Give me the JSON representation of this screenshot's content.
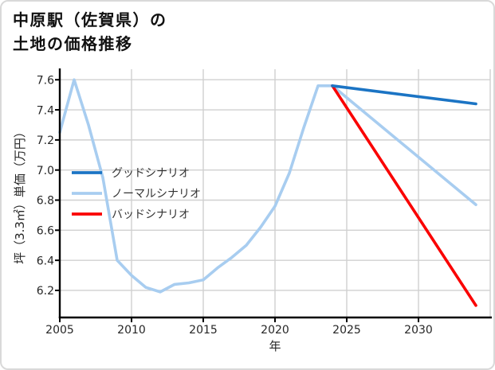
{
  "title": {
    "line1": "中原駅（佐賀県）の",
    "line2": "土地の価格推移"
  },
  "chart_data": {
    "type": "line",
    "title": "中原駅（佐賀県）の土地の価格推移",
    "xlabel": "年",
    "ylabel": "坪（3.3㎡）単価（万円）",
    "xlim": [
      2005,
      2035
    ],
    "ylim": [
      6.02,
      7.67
    ],
    "grid": true,
    "legend_position": "upper-left-inside",
    "xticks": [
      2005,
      2010,
      2015,
      2020,
      2025,
      2030
    ],
    "xtick_labels": [
      "2005",
      "2010",
      "2015",
      "2020",
      "2025",
      "2030"
    ],
    "x_gridlines": [
      2010,
      2015,
      2020,
      2025,
      2030,
      2035
    ],
    "yticks": [
      6.2,
      6.4,
      6.6,
      6.8,
      7.0,
      7.2,
      7.4,
      7.6
    ],
    "ytick_labels": [
      "6.2",
      "6.4",
      "6.6",
      "6.8",
      "7.0",
      "7.2",
      "7.4",
      "7.6"
    ],
    "colors": {
      "good": "#1b74c4",
      "normal": "#a8cdf0",
      "bad": "#fa0000",
      "grid": "#d0d0d0",
      "axis": "#000000",
      "tick_text": "#262626"
    },
    "legend_items": [
      {
        "label": "グッドシナリオ",
        "color": "#1b74c4"
      },
      {
        "label": "ノーマルシナリオ",
        "color": "#a8cdf0"
      },
      {
        "label": "バッドシナリオ",
        "color": "#fa0000"
      }
    ],
    "series": [
      {
        "name": "ノーマルシナリオ",
        "role": "normal",
        "color": "#a8cdf0",
        "x": [
          2005,
          2006,
          2007,
          2008,
          2009,
          2010,
          2011,
          2012,
          2013,
          2014,
          2015,
          2016,
          2017,
          2018,
          2019,
          2020,
          2021,
          2022,
          2023,
          2024,
          2034
        ],
        "values": [
          7.25,
          7.6,
          7.3,
          6.95,
          6.4,
          6.3,
          6.22,
          6.19,
          6.24,
          6.25,
          6.27,
          6.35,
          6.42,
          6.5,
          6.62,
          6.76,
          6.98,
          7.28,
          7.56,
          7.56,
          6.77
        ]
      },
      {
        "name": "バッドシナリオ",
        "role": "bad",
        "color": "#fa0000",
        "x": [
          2024,
          2034
        ],
        "values": [
          7.56,
          6.1
        ]
      },
      {
        "name": "グッドシナリオ",
        "role": "good",
        "color": "#1b74c4",
        "x": [
          2024,
          2034
        ],
        "values": [
          7.56,
          7.44
        ]
      }
    ]
  }
}
